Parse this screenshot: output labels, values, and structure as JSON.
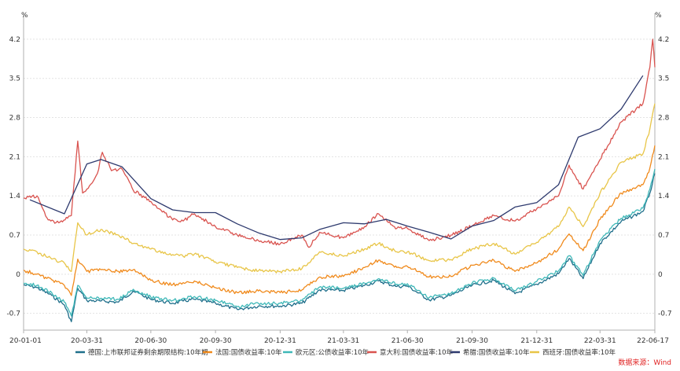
{
  "chart_data": {
    "type": "line",
    "unit_left": "%",
    "unit_right": "%",
    "ylim": [
      -1.0,
      4.55
    ],
    "y_ticks": [
      -0.7,
      0,
      0.7,
      1.4,
      2.1,
      2.8,
      3.5,
      4.2
    ],
    "y_tick_labels": [
      "-0.7",
      "0",
      "0.7",
      "1.4",
      "2.1",
      "2.8",
      "3.5",
      "4.2"
    ],
    "x_ticks": [
      "2020-01-01",
      "2020-03-31",
      "2020-06-30",
      "2020-09-30",
      "2020-12-31",
      "2021-03-31",
      "2021-06-30",
      "2021-09-30",
      "2021-12-31",
      "2022-03-31",
      "2022-06-17"
    ],
    "x_tick_labels": [
      "20-01-01",
      "20-03-31",
      "20-06-30",
      "20-09-30",
      "20-12-31",
      "21-03-31",
      "21-06-30",
      "21-09-30",
      "21-12-31",
      "22-03-31",
      "22-06-17"
    ],
    "grid": true,
    "legend_position": "bottom",
    "source": "数据来源：Wind",
    "series": [
      {
        "name": "德国:上市联邦证券剩余期限结构:10年期",
        "color": "#1f6f8b",
        "points": [
          [
            "2020-01-01",
            -0.19
          ],
          [
            "2020-01-20",
            -0.24
          ],
          [
            "2020-02-10",
            -0.38
          ],
          [
            "2020-02-28",
            -0.55
          ],
          [
            "2020-03-09",
            -0.85
          ],
          [
            "2020-03-18",
            -0.25
          ],
          [
            "2020-03-31",
            -0.47
          ],
          [
            "2020-04-20",
            -0.48
          ],
          [
            "2020-05-15",
            -0.5
          ],
          [
            "2020-06-05",
            -0.3
          ],
          [
            "2020-06-30",
            -0.45
          ],
          [
            "2020-07-31",
            -0.52
          ],
          [
            "2020-08-15",
            -0.48
          ],
          [
            "2020-08-31",
            -0.45
          ],
          [
            "2020-09-30",
            -0.52
          ],
          [
            "2020-10-31",
            -0.63
          ],
          [
            "2020-11-30",
            -0.57
          ],
          [
            "2020-12-31",
            -0.57
          ],
          [
            "2021-01-31",
            -0.52
          ],
          [
            "2021-02-25",
            -0.28
          ],
          [
            "2021-03-31",
            -0.29
          ],
          [
            "2021-04-30",
            -0.2
          ],
          [
            "2021-05-20",
            -0.12
          ],
          [
            "2021-06-15",
            -0.22
          ],
          [
            "2021-06-30",
            -0.21
          ],
          [
            "2021-07-31",
            -0.46
          ],
          [
            "2021-08-31",
            -0.38
          ],
          [
            "2021-09-30",
            -0.2
          ],
          [
            "2021-10-31",
            -0.11
          ],
          [
            "2021-11-30",
            -0.35
          ],
          [
            "2021-12-31",
            -0.18
          ],
          [
            "2022-01-31",
            0.01
          ],
          [
            "2022-02-15",
            0.28
          ],
          [
            "2022-03-07",
            -0.08
          ],
          [
            "2022-03-31",
            0.55
          ],
          [
            "2022-04-30",
            0.94
          ],
          [
            "2022-05-31",
            1.12
          ],
          [
            "2022-06-10",
            1.45
          ],
          [
            "2022-06-17",
            1.8
          ]
        ]
      },
      {
        "name": "法国:国债收益率:10年",
        "color": "#f08a1c",
        "points": [
          [
            "2020-01-01",
            0.07
          ],
          [
            "2020-01-20",
            0.0
          ],
          [
            "2020-02-10",
            -0.1
          ],
          [
            "2020-02-28",
            -0.2
          ],
          [
            "2020-03-09",
            -0.38
          ],
          [
            "2020-03-18",
            0.27
          ],
          [
            "2020-03-31",
            0.05
          ],
          [
            "2020-04-20",
            0.08
          ],
          [
            "2020-05-15",
            0.05
          ],
          [
            "2020-06-05",
            0.08
          ],
          [
            "2020-06-30",
            -0.11
          ],
          [
            "2020-07-31",
            -0.19
          ],
          [
            "2020-08-15",
            -0.15
          ],
          [
            "2020-08-31",
            -0.12
          ],
          [
            "2020-09-30",
            -0.24
          ],
          [
            "2020-10-31",
            -0.33
          ],
          [
            "2020-11-30",
            -0.3
          ],
          [
            "2020-12-31",
            -0.33
          ],
          [
            "2021-01-31",
            -0.28
          ],
          [
            "2021-02-25",
            -0.05
          ],
          [
            "2021-03-31",
            -0.04
          ],
          [
            "2021-04-30",
            0.12
          ],
          [
            "2021-05-20",
            0.25
          ],
          [
            "2021-06-15",
            0.12
          ],
          [
            "2021-06-30",
            0.14
          ],
          [
            "2021-07-31",
            -0.05
          ],
          [
            "2021-08-31",
            -0.04
          ],
          [
            "2021-09-30",
            0.16
          ],
          [
            "2021-10-31",
            0.25
          ],
          [
            "2021-11-30",
            0.05
          ],
          [
            "2021-12-31",
            0.2
          ],
          [
            "2022-01-31",
            0.45
          ],
          [
            "2022-02-15",
            0.72
          ],
          [
            "2022-03-07",
            0.42
          ],
          [
            "2022-03-31",
            0.98
          ],
          [
            "2022-04-30",
            1.45
          ],
          [
            "2022-05-31",
            1.6
          ],
          [
            "2022-06-10",
            1.9
          ],
          [
            "2022-06-17",
            2.3
          ]
        ]
      },
      {
        "name": "欧元区:公债收益率:10年",
        "color": "#3fb8b8",
        "points": [
          [
            "2020-01-01",
            -0.16
          ],
          [
            "2020-01-20",
            -0.2
          ],
          [
            "2020-02-10",
            -0.33
          ],
          [
            "2020-02-28",
            -0.5
          ],
          [
            "2020-03-09",
            -0.75
          ],
          [
            "2020-03-18",
            -0.2
          ],
          [
            "2020-03-31",
            -0.43
          ],
          [
            "2020-04-20",
            -0.43
          ],
          [
            "2020-05-15",
            -0.45
          ],
          [
            "2020-06-05",
            -0.27
          ],
          [
            "2020-06-30",
            -0.41
          ],
          [
            "2020-07-31",
            -0.47
          ],
          [
            "2020-08-15",
            -0.43
          ],
          [
            "2020-08-31",
            -0.4
          ],
          [
            "2020-09-30",
            -0.47
          ],
          [
            "2020-10-31",
            -0.58
          ],
          [
            "2020-11-30",
            -0.52
          ],
          [
            "2020-12-31",
            -0.52
          ],
          [
            "2021-01-31",
            -0.47
          ],
          [
            "2021-02-25",
            -0.23
          ],
          [
            "2021-03-31",
            -0.25
          ],
          [
            "2021-04-30",
            -0.16
          ],
          [
            "2021-05-20",
            -0.08
          ],
          [
            "2021-06-15",
            -0.18
          ],
          [
            "2021-06-30",
            -0.17
          ],
          [
            "2021-07-31",
            -0.42
          ],
          [
            "2021-08-31",
            -0.34
          ],
          [
            "2021-09-30",
            -0.16
          ],
          [
            "2021-10-31",
            -0.07
          ],
          [
            "2021-11-30",
            -0.3
          ],
          [
            "2021-12-31",
            -0.13
          ],
          [
            "2022-01-31",
            0.06
          ],
          [
            "2022-02-15",
            0.33
          ],
          [
            "2022-03-07",
            -0.02
          ],
          [
            "2022-03-31",
            0.6
          ],
          [
            "2022-04-30",
            1.0
          ],
          [
            "2022-05-31",
            1.18
          ],
          [
            "2022-06-10",
            1.52
          ],
          [
            "2022-06-17",
            1.88
          ]
        ]
      },
      {
        "name": "意大利:国债收益率:10年",
        "color": "#d9534f",
        "points": [
          [
            "2020-01-01",
            1.36
          ],
          [
            "2020-01-20",
            1.4
          ],
          [
            "2020-02-05",
            0.97
          ],
          [
            "2020-02-20",
            0.92
          ],
          [
            "2020-03-09",
            1.05
          ],
          [
            "2020-03-18",
            2.38
          ],
          [
            "2020-03-25",
            1.45
          ],
          [
            "2020-03-31",
            1.52
          ],
          [
            "2020-04-15",
            1.8
          ],
          [
            "2020-04-22",
            2.18
          ],
          [
            "2020-05-05",
            1.85
          ],
          [
            "2020-05-20",
            1.88
          ],
          [
            "2020-06-05",
            1.5
          ],
          [
            "2020-06-30",
            1.3
          ],
          [
            "2020-07-31",
            0.97
          ],
          [
            "2020-08-15",
            0.95
          ],
          [
            "2020-08-31",
            1.08
          ],
          [
            "2020-09-30",
            0.85
          ],
          [
            "2020-10-31",
            0.7
          ],
          [
            "2020-11-30",
            0.6
          ],
          [
            "2020-12-31",
            0.54
          ],
          [
            "2021-01-31",
            0.7
          ],
          [
            "2021-02-10",
            0.48
          ],
          [
            "2021-02-25",
            0.75
          ],
          [
            "2021-03-31",
            0.65
          ],
          [
            "2021-04-30",
            0.85
          ],
          [
            "2021-05-20",
            1.08
          ],
          [
            "2021-06-15",
            0.82
          ],
          [
            "2021-06-30",
            0.82
          ],
          [
            "2021-07-31",
            0.6
          ],
          [
            "2021-08-31",
            0.7
          ],
          [
            "2021-09-30",
            0.86
          ],
          [
            "2021-10-31",
            1.05
          ],
          [
            "2021-11-30",
            0.95
          ],
          [
            "2021-12-31",
            1.17
          ],
          [
            "2022-01-31",
            1.4
          ],
          [
            "2022-02-15",
            1.95
          ],
          [
            "2022-03-07",
            1.52
          ],
          [
            "2022-03-31",
            2.05
          ],
          [
            "2022-04-30",
            2.72
          ],
          [
            "2022-05-31",
            3.05
          ],
          [
            "2022-06-10",
            3.7
          ],
          [
            "2022-06-14",
            4.2
          ],
          [
            "2022-06-17",
            3.7
          ]
        ]
      },
      {
        "name": "希腊:国债收益率:10年",
        "color": "#2e3a6e",
        "points": [
          [
            "2020-01-10",
            1.33
          ],
          [
            "2020-02-28",
            1.08
          ],
          [
            "2020-03-31",
            1.97
          ],
          [
            "2020-04-20",
            2.05
          ],
          [
            "2020-05-20",
            1.92
          ],
          [
            "2020-06-30",
            1.35
          ],
          [
            "2020-07-31",
            1.15
          ],
          [
            "2020-08-31",
            1.1
          ],
          [
            "2020-09-30",
            1.1
          ],
          [
            "2020-10-31",
            0.9
          ],
          [
            "2020-11-30",
            0.74
          ],
          [
            "2020-12-31",
            0.62
          ],
          [
            "2021-01-31",
            0.65
          ],
          [
            "2021-02-25",
            0.8
          ],
          [
            "2021-03-31",
            0.92
          ],
          [
            "2021-04-30",
            0.9
          ],
          [
            "2021-05-31",
            0.98
          ],
          [
            "2021-06-30",
            0.86
          ],
          [
            "2021-07-31",
            0.75
          ],
          [
            "2021-08-31",
            0.63
          ],
          [
            "2021-09-30",
            0.86
          ],
          [
            "2021-10-31",
            0.96
          ],
          [
            "2021-11-30",
            1.2
          ],
          [
            "2021-12-31",
            1.28
          ],
          [
            "2022-01-31",
            1.6
          ],
          [
            "2022-02-28",
            2.45
          ],
          [
            "2022-03-31",
            2.6
          ],
          [
            "2022-04-30",
            2.95
          ],
          [
            "2022-05-31",
            3.55
          ]
        ]
      },
      {
        "name": "西班牙:国债收益率:10年",
        "color": "#e8c547",
        "points": [
          [
            "2020-01-01",
            0.45
          ],
          [
            "2020-01-20",
            0.4
          ],
          [
            "2020-02-10",
            0.27
          ],
          [
            "2020-02-28",
            0.2
          ],
          [
            "2020-03-09",
            0.05
          ],
          [
            "2020-03-18",
            0.92
          ],
          [
            "2020-03-31",
            0.7
          ],
          [
            "2020-04-20",
            0.8
          ],
          [
            "2020-05-15",
            0.7
          ],
          [
            "2020-06-05",
            0.55
          ],
          [
            "2020-06-30",
            0.45
          ],
          [
            "2020-07-31",
            0.35
          ],
          [
            "2020-08-15",
            0.32
          ],
          [
            "2020-08-31",
            0.36
          ],
          [
            "2020-09-30",
            0.22
          ],
          [
            "2020-10-31",
            0.12
          ],
          [
            "2020-11-30",
            0.06
          ],
          [
            "2020-12-31",
            0.05
          ],
          [
            "2021-01-31",
            0.1
          ],
          [
            "2021-02-25",
            0.4
          ],
          [
            "2021-03-31",
            0.32
          ],
          [
            "2021-04-30",
            0.45
          ],
          [
            "2021-05-20",
            0.55
          ],
          [
            "2021-06-15",
            0.4
          ],
          [
            "2021-06-30",
            0.4
          ],
          [
            "2021-07-31",
            0.24
          ],
          [
            "2021-08-31",
            0.26
          ],
          [
            "2021-09-30",
            0.45
          ],
          [
            "2021-10-31",
            0.55
          ],
          [
            "2021-11-30",
            0.36
          ],
          [
            "2021-12-31",
            0.57
          ],
          [
            "2022-01-31",
            0.85
          ],
          [
            "2022-02-15",
            1.2
          ],
          [
            "2022-03-07",
            0.85
          ],
          [
            "2022-03-31",
            1.45
          ],
          [
            "2022-04-30",
            2.0
          ],
          [
            "2022-05-31",
            2.15
          ],
          [
            "2022-06-10",
            2.6
          ],
          [
            "2022-06-17",
            3.05
          ]
        ]
      }
    ]
  }
}
